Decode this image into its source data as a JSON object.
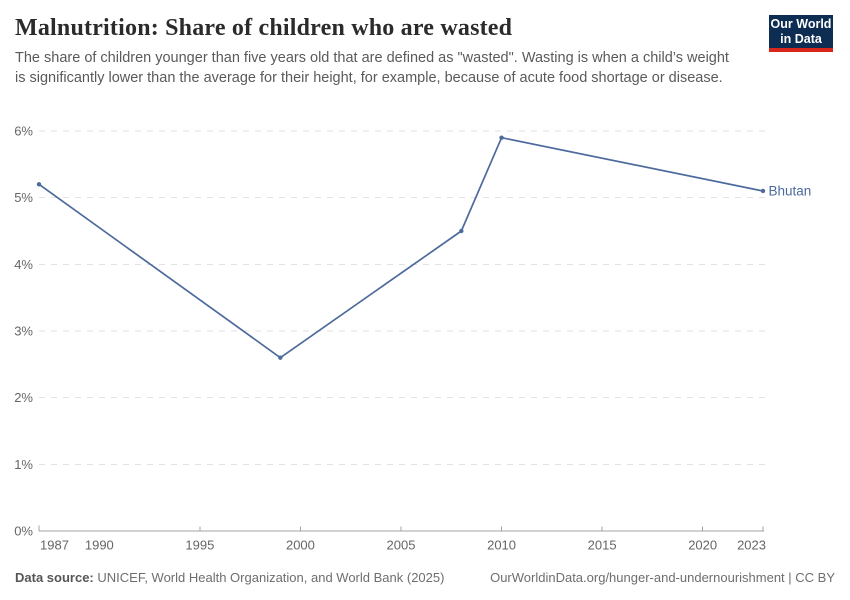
{
  "header": {
    "title": "Malnutrition: Share of children who are wasted",
    "subtitle": "The share of children younger than five years old that are defined as \"wasted\". Wasting is when a child’s weight is significantly lower than the average for their height, for example, because of acute food shortage or disease."
  },
  "logo": {
    "line1": "Our World",
    "line2": "in Data"
  },
  "chart_data": {
    "type": "line",
    "title": "Malnutrition: Share of children who are wasted",
    "unit": "%",
    "series": [
      {
        "name": "Bhutan",
        "color": "#4c6a9c",
        "x": [
          1987,
          1999,
          2008,
          2010,
          2023
        ],
        "values": [
          5.2,
          2.6,
          4.5,
          5.9,
          5.1
        ]
      }
    ],
    "x_ticks": [
      1987,
      1990,
      1995,
      2000,
      2005,
      2010,
      2015,
      2020,
      2023
    ],
    "y_ticks": [
      0,
      1,
      2,
      3,
      4,
      5,
      6
    ],
    "y_tick_suffix": "%",
    "xlim": [
      1987,
      2023
    ],
    "ylim": [
      0,
      6
    ],
    "grid": "horizontal-dashed",
    "legend": "end-of-line-label"
  },
  "footer": {
    "source_label": "Data source:",
    "source_text": "UNICEF, World Health Organization, and World Bank (2025)",
    "attribution": "OurWorldinData.org/hunger-and-undernourishment | CC BY"
  },
  "colors": {
    "line": "#4c6a9c",
    "grid": "#e2e2e2",
    "axis": "#a3a3a3",
    "tick_label": "#666666",
    "title": "#2b2b2b",
    "subtitle": "#5a5a5a",
    "logo_bg": "#0d2d52",
    "logo_accent": "#d8261d"
  }
}
